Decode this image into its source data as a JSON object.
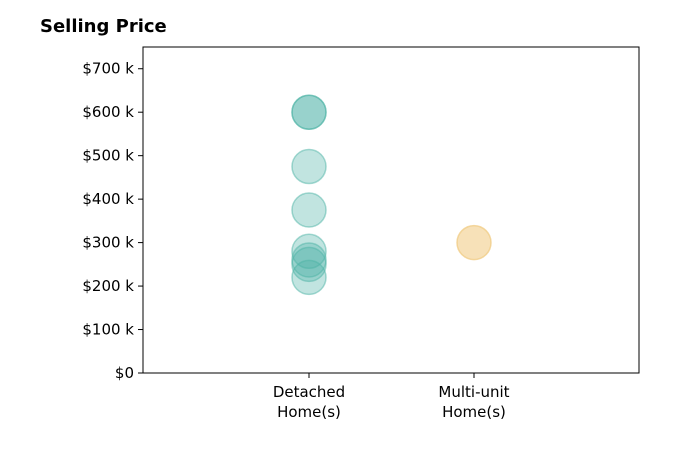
{
  "chart_data": {
    "type": "scatter",
    "title": "Selling Price",
    "xlabel": "",
    "ylabel": "",
    "categories": [
      [
        "Detached",
        "Home(s)"
      ],
      [
        "Multi-unit",
        "Home(s)"
      ]
    ],
    "y_ticks": [
      {
        "value": 0,
        "label": "$0"
      },
      {
        "value": 100000,
        "label": "$100 k"
      },
      {
        "value": 200000,
        "label": "$200 k"
      },
      {
        "value": 300000,
        "label": "$300 k"
      },
      {
        "value": 400000,
        "label": "$400 k"
      },
      {
        "value": 500000,
        "label": "$500 k"
      },
      {
        "value": 600000,
        "label": "$600 k"
      },
      {
        "value": 700000,
        "label": "$700 k"
      }
    ],
    "ylim": [
      0,
      750000
    ],
    "grid": false,
    "legend": "none",
    "series": [
      {
        "category_index": 0,
        "color": "#4db3a6",
        "opacity": 0.35,
        "values": [
          600000,
          600000,
          475000,
          375000,
          280000,
          260000,
          250000,
          220000
        ]
      },
      {
        "category_index": 1,
        "color": "#f0c97e",
        "opacity": 0.55,
        "values": [
          300000
        ]
      }
    ]
  }
}
